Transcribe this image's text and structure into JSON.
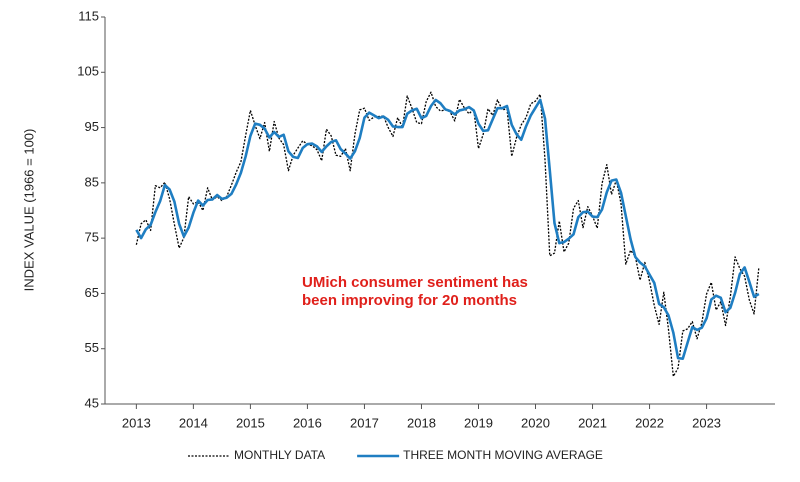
{
  "chart_data": {
    "type": "line",
    "y_label": "INDEX VALUE (1966 = 100)",
    "annotation": [
      "UMich consumer sentiment has",
      "been improving for 20 months"
    ],
    "annotation_color": "#e0201b",
    "x": [
      2013,
      2013.083,
      2013.167,
      2013.25,
      2013.333,
      2013.417,
      2013.5,
      2013.583,
      2013.667,
      2013.75,
      2013.833,
      2013.917,
      2014,
      2014.083,
      2014.167,
      2014.25,
      2014.333,
      2014.417,
      2014.5,
      2014.583,
      2014.667,
      2014.75,
      2014.833,
      2014.917,
      2015,
      2015.083,
      2015.167,
      2015.25,
      2015.333,
      2015.417,
      2015.5,
      2015.583,
      2015.667,
      2015.75,
      2015.833,
      2015.917,
      2016,
      2016.083,
      2016.167,
      2016.25,
      2016.333,
      2016.417,
      2016.5,
      2016.583,
      2016.667,
      2016.75,
      2016.833,
      2016.917,
      2017,
      2017.083,
      2017.167,
      2017.25,
      2017.333,
      2017.417,
      2017.5,
      2017.583,
      2017.667,
      2017.75,
      2017.833,
      2017.917,
      2018,
      2018.083,
      2018.167,
      2018.25,
      2018.333,
      2018.417,
      2018.5,
      2018.583,
      2018.667,
      2018.75,
      2018.833,
      2018.917,
      2019,
      2019.083,
      2019.167,
      2019.25,
      2019.333,
      2019.417,
      2019.5,
      2019.583,
      2019.667,
      2019.75,
      2019.833,
      2019.917,
      2020,
      2020.083,
      2020.167,
      2020.25,
      2020.333,
      2020.417,
      2020.5,
      2020.583,
      2020.667,
      2020.75,
      2020.833,
      2020.917,
      2021,
      2021.083,
      2021.167,
      2021.25,
      2021.333,
      2021.417,
      2021.5,
      2021.583,
      2021.667,
      2021.75,
      2021.833,
      2021.917,
      2022,
      2022.083,
      2022.167,
      2022.25,
      2022.333,
      2022.417,
      2022.5,
      2022.583,
      2022.667,
      2022.75,
      2022.833,
      2022.917,
      2023,
      2023.083,
      2023.167,
      2023.25,
      2023.333,
      2023.417,
      2023.5,
      2023.583,
      2023.667,
      2023.75,
      2023.833,
      2023.917
    ],
    "series": [
      {
        "name": "MONTHLY DATA",
        "color": "#000000",
        "line_style": "dotted",
        "values": [
          73.8,
          77.6,
          78.3,
          76.4,
          84.5,
          84.1,
          85.1,
          82.1,
          77.5,
          73.2,
          75.1,
          82.5,
          81.2,
          81.6,
          80.0,
          84.1,
          81.9,
          82.5,
          81.8,
          82.5,
          84.6,
          86.9,
          88.8,
          93.6,
          98.1,
          95.4,
          93.0,
          95.9,
          90.7,
          96.1,
          93.1,
          91.9,
          87.2,
          90.0,
          91.3,
          92.6,
          92.0,
          91.7,
          91.0,
          89.0,
          94.7,
          93.5,
          90.0,
          89.8,
          91.2,
          87.2,
          93.8,
          98.2,
          98.5,
          96.3,
          96.9,
          97.0,
          97.1,
          95.0,
          93.4,
          96.8,
          95.1,
          100.7,
          98.5,
          95.9,
          95.7,
          99.7,
          101.4,
          98.8,
          98.0,
          98.2,
          97.9,
          96.2,
          100.1,
          98.6,
          97.5,
          98.3,
          91.2,
          93.8,
          98.4,
          97.2,
          100.0,
          98.2,
          98.4,
          89.8,
          93.2,
          95.5,
          96.8,
          99.3,
          99.8,
          101.0,
          89.1,
          71.8,
          72.3,
          78.1,
          72.5,
          74.1,
          80.4,
          81.8,
          76.9,
          80.7,
          79.0,
          76.8,
          84.9,
          88.3,
          82.9,
          85.5,
          81.2,
          70.3,
          72.8,
          71.7,
          67.4,
          70.6,
          67.2,
          62.8,
          59.4,
          65.2,
          58.4,
          50.0,
          51.5,
          58.2,
          58.6,
          59.9,
          56.8,
          59.7,
          64.9,
          67.0,
          62.0,
          63.5,
          59.2,
          64.4,
          71.6,
          69.5,
          68.1,
          63.8,
          61.3,
          69.7
        ]
      },
      {
        "name": "THREE MONTH MOVING AVERAGE",
        "color": "#1f7ec2",
        "line_style": "solid",
        "values": [
          76.5,
          75.0,
          76.6,
          77.4,
          79.7,
          81.7,
          84.6,
          83.8,
          81.6,
          77.6,
          75.3,
          76.9,
          79.6,
          81.8,
          80.9,
          81.9,
          82.0,
          82.8,
          82.1,
          82.3,
          83.0,
          84.7,
          86.8,
          89.8,
          93.5,
          95.7,
          95.5,
          94.8,
          93.2,
          94.2,
          93.3,
          93.7,
          90.7,
          89.7,
          89.5,
          91.3,
          92.0,
          92.1,
          91.6,
          90.6,
          91.6,
          92.4,
          92.7,
          91.1,
          90.3,
          89.4,
          90.7,
          93.1,
          96.8,
          97.7,
          97.2,
          96.7,
          97.0,
          96.4,
          95.2,
          95.1,
          95.1,
          97.5,
          98.1,
          98.4,
          96.7,
          97.1,
          98.9,
          100.0,
          99.4,
          98.3,
          98.0,
          97.4,
          98.1,
          98.3,
          98.7,
          98.1,
          95.7,
          94.4,
          94.5,
          96.5,
          98.5,
          98.5,
          98.9,
          95.5,
          93.8,
          92.8,
          95.2,
          97.2,
          98.6,
          100.0,
          96.6,
          87.3,
          77.7,
          74.1,
          74.3,
          74.9,
          75.7,
          78.8,
          79.7,
          79.8,
          78.9,
          78.8,
          80.2,
          83.3,
          85.4,
          85.6,
          83.2,
          79.0,
          74.8,
          71.6,
          70.6,
          69.9,
          68.4,
          66.9,
          63.1,
          62.5,
          61.0,
          57.9,
          53.3,
          53.2,
          56.1,
          58.9,
          58.4,
          58.8,
          60.5,
          63.9,
          64.6,
          64.2,
          61.6,
          62.4,
          65.1,
          68.5,
          69.7,
          67.1,
          64.4,
          64.9
        ]
      }
    ],
    "xlim": [
      2012.45,
      2024.2
    ],
    "xticks": [
      2013,
      2014,
      2015,
      2016,
      2017,
      2018,
      2019,
      2020,
      2021,
      2022,
      2023
    ],
    "ylim": [
      45,
      115
    ],
    "yticks": [
      45,
      55,
      65,
      75,
      85,
      95,
      105,
      115
    ],
    "grid": false,
    "legend": "bottom"
  }
}
